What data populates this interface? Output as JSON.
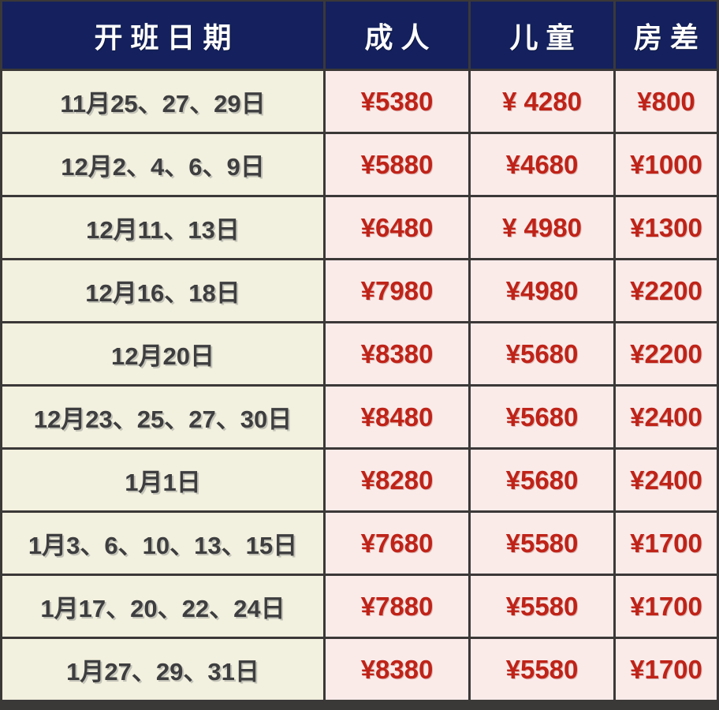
{
  "table": {
    "columns": [
      "开班日期",
      "成人",
      "儿童",
      "房差"
    ],
    "rows": [
      {
        "date": "11月25、27、29日",
        "adult": "¥5380",
        "child": "¥ 4280",
        "room_diff": "¥800"
      },
      {
        "date": "12月2、4、6、9日",
        "adult": "¥5880",
        "child": "¥4680",
        "room_diff": "¥1000"
      },
      {
        "date": "12月11、13日",
        "adult": "¥6480",
        "child": "¥ 4980",
        "room_diff": "¥1300"
      },
      {
        "date": "12月16、18日",
        "adult": "¥7980",
        "child": "¥4980",
        "room_diff": "¥2200"
      },
      {
        "date": "12月20日",
        "adult": "¥8380",
        "child": "¥5680",
        "room_diff": "¥2200"
      },
      {
        "date": "12月23、25、27、30日",
        "adult": "¥8480",
        "child": "¥5680",
        "room_diff": "¥2400"
      },
      {
        "date": "1月1日",
        "adult": "¥8280",
        "child": "¥5680",
        "room_diff": "¥2400"
      },
      {
        "date": "1月3、6、10、13、15日",
        "adult": "¥7680",
        "child": "¥5580",
        "room_diff": "¥1700"
      },
      {
        "date": "1月17、20、22、24日",
        "adult": "¥7880",
        "child": "¥5580",
        "room_diff": "¥1700"
      },
      {
        "date": "1月27、29、31日",
        "adult": "¥8380",
        "child": "¥5580",
        "room_diff": "¥1700"
      }
    ]
  },
  "colors": {
    "header_bg": "#14215E",
    "header_text": "#FFFFFF",
    "date_cell_bg": "#F2F0DE",
    "date_text": "#3E3E40",
    "price_cell_bg": "#FAEBE9",
    "price_text": "#BF2318",
    "grid_border": "#3B3838"
  }
}
